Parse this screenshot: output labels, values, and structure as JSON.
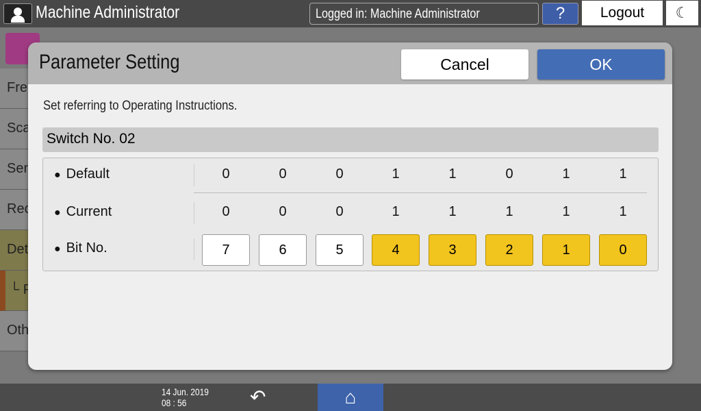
{
  "header": {
    "title": "Machine Administrator",
    "login_status": "Logged in: Machine Administrator",
    "help_label": "?",
    "logout_label": "Logout"
  },
  "background": {
    "sidebar": [
      "Fre",
      "Sca",
      "Sen",
      "Rec",
      "Det",
      "└ P",
      "Oth"
    ]
  },
  "dialog": {
    "title": "Parameter Setting",
    "cancel_label": "Cancel",
    "ok_label": "OK",
    "instruction": "Set referring to Operating Instructions.",
    "switch_label": "Switch No. 02",
    "rows": {
      "default_label": "Default",
      "current_label": "Current",
      "bit_label": "Bit No."
    },
    "default_values": [
      "0",
      "0",
      "0",
      "1",
      "1",
      "0",
      "1",
      "1"
    ],
    "current_values": [
      "0",
      "0",
      "0",
      "1",
      "1",
      "1",
      "1",
      "1"
    ],
    "bits": [
      "7",
      "6",
      "5",
      "4",
      "3",
      "2",
      "1",
      "0"
    ],
    "bits_on": [
      false,
      false,
      false,
      true,
      true,
      true,
      true,
      true
    ]
  },
  "footer": {
    "date": "14 Jun. 2019",
    "time": "08 : 56"
  },
  "colors": {
    "accent": "#436db5",
    "bit_on": "#f2c41e"
  }
}
